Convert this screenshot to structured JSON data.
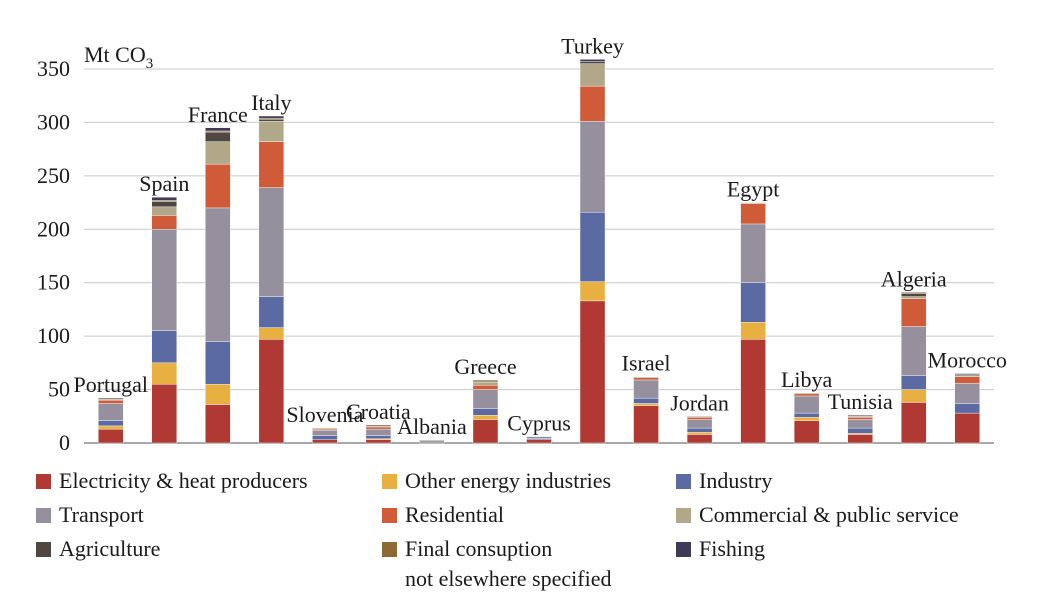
{
  "chart_data": {
    "type": "bar",
    "stacked": true,
    "ylabel": "Mt CO",
    "ylabel_subscript": "3",
    "ylim": [
      0,
      350
    ],
    "yticks": [
      0,
      50,
      100,
      150,
      200,
      250,
      300,
      350
    ],
    "grid": true,
    "legend_position": "bottom",
    "categories": [
      "Portugal",
      "Spain",
      "France",
      "Italy",
      "Slovenia",
      "Croatia",
      "Albania",
      "Greece",
      "Cyprus",
      "Turkey",
      "Israel",
      "Jordan",
      "Egypt",
      "Libya",
      "Tunisia",
      "Algeria",
      "Morocco"
    ],
    "series": [
      {
        "name": "Electricity & heat producers",
        "color": "#b03a33",
        "values": [
          13,
          55,
          36,
          97,
          3,
          3,
          0,
          22,
          3,
          133,
          35,
          8,
          97,
          21,
          8,
          38,
          28
        ]
      },
      {
        "name": "Other energy industries",
        "color": "#e8b040",
        "values": [
          3,
          20,
          19,
          11,
          0,
          1,
          0,
          4,
          0,
          18,
          2,
          2,
          16,
          3,
          1,
          12,
          0
        ]
      },
      {
        "name": "Industry",
        "color": "#5b6aa2",
        "values": [
          5,
          30,
          40,
          29,
          4,
          3,
          0,
          6,
          1,
          65,
          5,
          4,
          37,
          4,
          5,
          13,
          9
        ]
      },
      {
        "name": "Transport",
        "color": "#958f9e",
        "values": [
          16,
          95,
          125,
          102,
          5,
          6,
          2,
          18,
          2,
          85,
          17,
          8,
          55,
          16,
          8,
          46,
          19
        ]
      },
      {
        "name": "Residential",
        "color": "#cf5b38",
        "values": [
          3,
          13,
          41,
          43,
          1,
          2,
          0,
          4,
          0,
          33,
          2,
          2,
          19,
          2,
          2,
          26,
          6
        ]
      },
      {
        "name": "Commercial & public service",
        "color": "#b1a88a",
        "values": [
          1,
          8,
          21,
          19,
          1,
          1,
          1,
          3,
          0,
          21,
          1,
          1,
          1,
          1,
          1,
          2,
          1
        ]
      },
      {
        "name": "Agriculture",
        "color": "#4f4740",
        "values": [
          1,
          5,
          9,
          2,
          0,
          1,
          0,
          1,
          0,
          2,
          0,
          0,
          0,
          0,
          1,
          3,
          1
        ]
      },
      {
        "name": "Final consuption not elsewhere specified",
        "color": "#8d6a33",
        "values": [
          0,
          1,
          1,
          1,
          0,
          0,
          0,
          1,
          0,
          0,
          0,
          0,
          0,
          0,
          0,
          1,
          0
        ]
      },
      {
        "name": "Fishing",
        "color": "#3f3a55",
        "values": [
          0,
          3,
          3,
          2,
          0,
          0,
          0,
          0,
          0,
          2,
          0,
          0,
          0,
          0,
          0,
          0,
          1
        ]
      }
    ]
  },
  "legend": {
    "items": [
      {
        "label": "Electricity & heat producers",
        "color": "#b03a33"
      },
      {
        "label": "Other energy industries",
        "color": "#e8b040"
      },
      {
        "label": "Industry",
        "color": "#5b6aa2"
      },
      {
        "label": "Transport",
        "color": "#958f9e"
      },
      {
        "label": "Residential",
        "color": "#cf5b38"
      },
      {
        "label": "Commercial & public service",
        "color": "#b1a88a"
      },
      {
        "label": "Agriculture",
        "color": "#4f4740"
      },
      {
        "label": "Final consuption",
        "label_line2": "not elsewhere specified",
        "color": "#8d6a33"
      },
      {
        "label": "Fishing",
        "color": "#3f3a55"
      }
    ]
  }
}
